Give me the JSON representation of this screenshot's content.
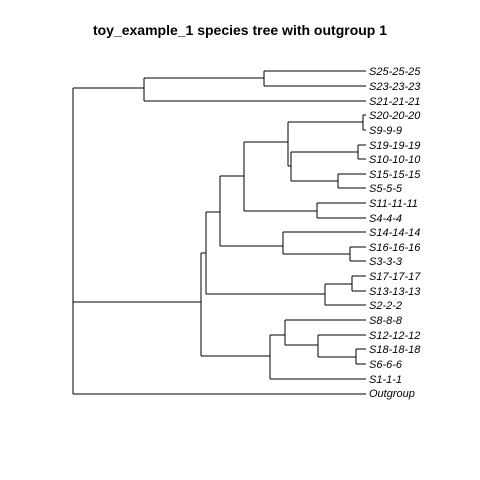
{
  "title": "toy_example_1 species tree with outgroup 1",
  "tips": [
    "S25-25-25",
    "S23-23-23",
    "S21-21-21",
    "S20-20-20",
    "S9-9-9",
    "S19-19-19",
    "S10-10-10",
    "S15-15-15",
    "S5-5-5",
    "S11-11-11",
    "S4-4-4",
    "S14-14-14",
    "S16-16-16",
    "S3-3-3",
    "S17-17-17",
    "S13-13-13",
    "S2-2-2",
    "S8-8-8",
    "S12-12-12",
    "S18-18-18",
    "S6-6-6",
    "S1-1-1",
    "Outgroup"
  ]
}
